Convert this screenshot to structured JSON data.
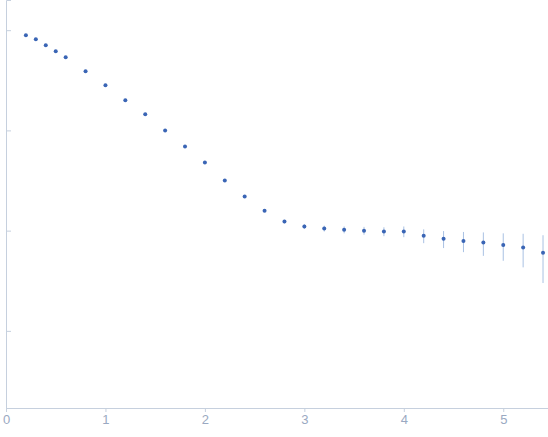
{
  "chart_data": {
    "type": "scatter",
    "log": "y",
    "tick_labels": "x",
    "color": "#3a65b5",
    "marker": "circle",
    "x": [
      0.2,
      0.3,
      0.4,
      0.5,
      0.6,
      0.8,
      1.0,
      1.2,
      1.4,
      1.6,
      1.8,
      2.0,
      2.2,
      2.4,
      2.6,
      2.8,
      3.0,
      3.2,
      3.4,
      3.6,
      3.8,
      4.0,
      4.2,
      4.4,
      4.6,
      4.8,
      5.0,
      5.2,
      5.4
    ],
    "values": [
      0.891,
      0.813,
      0.708,
      0.617,
      0.537,
      0.389,
      0.282,
      0.2,
      0.145,
      0.1,
      0.0692,
      0.0479,
      0.0316,
      0.0219,
      0.0158,
      0.0123,
      0.011,
      0.0105,
      0.0102,
      0.01,
      0.0098,
      0.0098,
      0.0089,
      0.0083,
      0.0079,
      0.0076,
      0.0072,
      0.0068,
      0.006
    ],
    "errors": [
      0.01,
      0.008,
      0.006,
      0.005,
      0.004,
      0.003,
      0.002,
      0.0015,
      0.001,
      0.0008,
      0.0006,
      0.0005,
      0.0004,
      0.0004,
      0.0004,
      0.0005,
      0.0006,
      0.0007,
      0.0008,
      0.0009,
      0.001,
      0.0012,
      0.0014,
      0.0016,
      0.0018,
      0.002,
      0.0022,
      0.0025,
      0.003
    ],
    "xlim": [
      0,
      5.45
    ],
    "ylim": [
      0.00017,
      2
    ],
    "xticks": [
      0,
      1,
      2,
      3,
      4,
      5
    ],
    "yticks": [
      0.001,
      0.01,
      0.1,
      1
    ]
  }
}
